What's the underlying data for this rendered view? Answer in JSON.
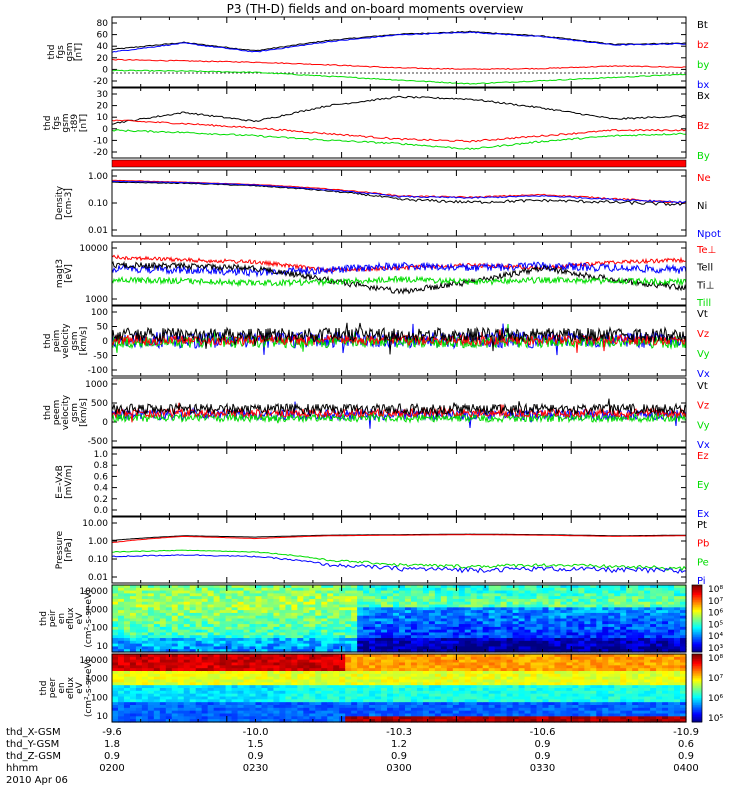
{
  "title": "P3 (TH-D) fields and on-board moments overview",
  "date": "2010 Apr 06",
  "orbit_table": {
    "row_labels": [
      "thd_X-GSM",
      "thd_Y-GSM",
      "thd_Z-GSM",
      "hhmm"
    ],
    "columns": [
      {
        "x": "-9.6",
        "y": "1.8",
        "z": "0.9",
        "t": "0200"
      },
      {
        "x": "-10.0",
        "y": "1.5",
        "z": "0.9",
        "t": "0230"
      },
      {
        "x": "-10.3",
        "y": "1.2",
        "z": "0.9",
        "t": "0300"
      },
      {
        "x": "-10.6",
        "y": "0.9",
        "z": "0.9",
        "t": "0330"
      },
      {
        "x": "-10.9",
        "y": "0.6",
        "z": "0.9",
        "t": "0400"
      }
    ]
  },
  "colors": {
    "black": "#000000",
    "red": "#ff0000",
    "green": "#00dd00",
    "blue": "#0000ff"
  },
  "chart_data": [
    {
      "type": "line",
      "ylabel": [
        "thd",
        "fgs",
        "gsm",
        "[nT]"
      ],
      "yticks": [
        "80",
        "60",
        "40",
        "20",
        "0",
        "-20"
      ],
      "legend": [
        {
          "text": "Bt",
          "color": "#000000"
        },
        {
          "text": "bz",
          "color": "#ff0000"
        },
        {
          "text": "by",
          "color": "#00dd00"
        },
        {
          "text": "bx",
          "color": "#0000ff"
        }
      ],
      "x_hours": [
        0,
        0.25,
        0.5,
        0.75,
        1.0,
        1.25,
        1.5,
        1.75,
        2.0
      ],
      "series": [
        {
          "name": "Bt",
          "color": "#000000",
          "values": [
            34,
            45,
            32,
            48,
            58,
            62,
            55,
            42,
            44
          ]
        },
        {
          "name": "bz",
          "color": "#ff0000",
          "values": [
            18,
            16,
            14,
            10,
            5,
            3,
            4,
            8,
            6
          ]
        },
        {
          "name": "by",
          "color": "#00dd00",
          "values": [
            1,
            0,
            -2,
            -8,
            -14,
            -20,
            -15,
            -10,
            -5
          ]
        },
        {
          "name": "bx",
          "color": "#0000ff",
          "values": [
            30,
            44,
            30,
            46,
            57,
            61,
            54,
            41,
            43
          ]
        }
      ]
    },
    {
      "type": "line",
      "ylabel": [
        "thd",
        "fgs",
        "gsm",
        "-t89",
        "[nT]"
      ],
      "yticks": [
        "30",
        "20",
        "10",
        "0",
        "-10",
        "-20"
      ],
      "legend": [
        {
          "text": "Bx",
          "color": "#000000"
        },
        {
          "text": "Bz",
          "color": "#ff0000"
        },
        {
          "text": "By",
          "color": "#00dd00"
        }
      ],
      "x_hours": [
        0,
        0.25,
        0.5,
        0.75,
        1.0,
        1.25,
        1.5,
        1.75,
        2.0
      ],
      "series": [
        {
          "name": "Bx",
          "color": "#000000",
          "values": [
            6,
            16,
            8,
            22,
            30,
            28,
            20,
            10,
            13
          ]
        },
        {
          "name": "Bz",
          "color": "#ff0000",
          "values": [
            9,
            6,
            2,
            -3,
            -8,
            -10,
            -5,
            0,
            0
          ]
        },
        {
          "name": "By",
          "color": "#00dd00",
          "values": [
            0,
            -2,
            -5,
            -9,
            -12,
            -17,
            -10,
            -5,
            -3
          ]
        }
      ]
    },
    {
      "type": "line",
      "ylabel": [
        "Density",
        "[cm-3]"
      ],
      "yticks": [
        "1.00",
        "0.10",
        "0.01"
      ],
      "yscale": "log",
      "legend": [
        {
          "text": "Ne",
          "color": "#ff0000"
        },
        {
          "text": "Ni",
          "color": "#000000"
        },
        {
          "text": "Npot",
          "color": "#0000ff"
        }
      ],
      "x_hours": [
        0,
        0.25,
        0.5,
        0.75,
        1.0,
        1.25,
        1.5,
        1.75,
        2.0
      ],
      "series": [
        {
          "name": "Ne",
          "color": "#ff0000",
          "values": [
            0.7,
            0.6,
            0.5,
            0.35,
            0.2,
            0.18,
            0.22,
            0.16,
            0.11
          ]
        },
        {
          "name": "Ni",
          "color": "#000000",
          "values": [
            0.6,
            0.55,
            0.45,
            0.3,
            0.15,
            0.12,
            0.14,
            0.12,
            0.1
          ]
        },
        {
          "name": "Npot",
          "color": "#0000ff",
          "values": [
            0.65,
            0.58,
            0.48,
            0.32,
            0.19,
            0.17,
            0.2,
            0.15,
            0.12
          ]
        }
      ]
    },
    {
      "type": "line",
      "ylabel": [
        "magt3",
        "[eV]"
      ],
      "yticks": [
        "10000",
        "1000"
      ],
      "legend": [
        {
          "text": "Te⊥",
          "color": "#ff0000"
        },
        {
          "text": "Tell",
          "color": "#000000"
        },
        {
          "text": "Ti⊥",
          "color": "#000000"
        },
        {
          "text": "Till",
          "color": "#00dd00"
        }
      ]
    },
    {
      "type": "line",
      "ylabel": [
        "thd",
        "peim",
        "velocity",
        "gsm",
        "[km/s]"
      ],
      "yticks": [
        "100",
        "50",
        "0",
        "-50",
        "-100"
      ],
      "legend": [
        {
          "text": "Vt",
          "color": "#000000"
        },
        {
          "text": "Vz",
          "color": "#ff0000"
        },
        {
          "text": "Vy",
          "color": "#00dd00"
        },
        {
          "text": "Vx",
          "color": "#0000ff"
        }
      ]
    },
    {
      "type": "line",
      "ylabel": [
        "thd",
        "peem",
        "velocity",
        "gsm",
        "[km/s]"
      ],
      "yticks": [
        "1000",
        "500",
        "0",
        "-500"
      ],
      "legend": [
        {
          "text": "Vt",
          "color": "#000000"
        },
        {
          "text": "Vz",
          "color": "#ff0000"
        },
        {
          "text": "Vy",
          "color": "#00dd00"
        },
        {
          "text": "Vx",
          "color": "#0000ff"
        }
      ]
    },
    {
      "type": "line",
      "ylabel": [
        "E=-VxB",
        "[mV/m]"
      ],
      "yticks": [
        "1.0",
        "0.8",
        "0.6",
        "0.4",
        "0.2",
        "0.0"
      ],
      "legend": [
        {
          "text": "Ez",
          "color": "#ff0000"
        },
        {
          "text": "Ey",
          "color": "#00dd00"
        },
        {
          "text": "Ex",
          "color": "#0000ff"
        }
      ]
    },
    {
      "type": "line",
      "ylabel": [
        "Pressure",
        "[nPa]"
      ],
      "yticks": [
        "10.00",
        "1.00",
        "0.10",
        "0.01"
      ],
      "yscale": "log",
      "legend": [
        {
          "text": "Pt",
          "color": "#000000"
        },
        {
          "text": "Pb",
          "color": "#ff0000"
        },
        {
          "text": "Pe",
          "color": "#00dd00"
        },
        {
          "text": "Pi",
          "color": "#0000ff"
        }
      ],
      "x_hours": [
        0,
        0.25,
        0.5,
        0.75,
        1.0,
        1.25,
        1.5,
        1.75,
        2.0
      ],
      "series": [
        {
          "name": "Pt",
          "color": "#000000",
          "values": [
            0.9,
            1.5,
            1.3,
            1.6,
            1.7,
            1.8,
            1.7,
            1.5,
            1.6
          ]
        },
        {
          "name": "Pb",
          "color": "#ff0000",
          "values": [
            0.7,
            1.4,
            1.1,
            1.5,
            1.6,
            1.7,
            1.6,
            1.4,
            1.5
          ]
        },
        {
          "name": "Pe",
          "color": "#00dd00",
          "values": [
            0.25,
            0.3,
            0.25,
            0.1,
            0.06,
            0.05,
            0.06,
            0.05,
            0.04
          ]
        },
        {
          "name": "Pi",
          "color": "#0000ff",
          "values": [
            0.15,
            0.18,
            0.15,
            0.06,
            0.04,
            0.035,
            0.04,
            0.035,
            0.03
          ]
        }
      ]
    },
    {
      "type": "heatmap",
      "ylabel": [
        "thd",
        "peir",
        "en",
        "eflux",
        "eV",
        "(cm²-s-sr-eV)"
      ],
      "yticks": [
        "10000",
        "1000",
        "100",
        "10"
      ],
      "colorbar_ticks": [
        "10⁸",
        "10⁷",
        "10⁶",
        "10⁵",
        "10⁴",
        "10³"
      ]
    },
    {
      "type": "heatmap",
      "ylabel": [
        "thd",
        "peer",
        "en",
        "eflux",
        "eV",
        "(cm²-s-sr-eV)"
      ],
      "yticks": [
        "10000",
        "1000",
        "100",
        "10"
      ],
      "colorbar_ticks": [
        "10⁸",
        "10⁷",
        "10⁶",
        "10⁵"
      ]
    }
  ]
}
